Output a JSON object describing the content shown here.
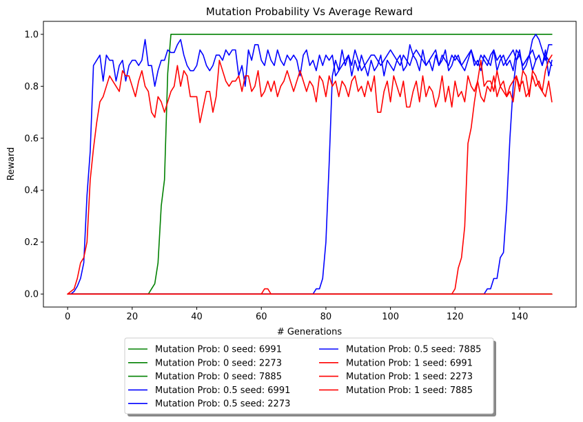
{
  "chart_data": {
    "type": "line",
    "title": "Mutation Probability Vs Average Reward",
    "xlabel": "# Generations",
    "ylabel": "Reward",
    "xlim": [
      -7.5,
      157.5
    ],
    "ylim": [
      -0.05,
      1.05
    ],
    "xticks": [
      0,
      20,
      40,
      60,
      80,
      100,
      120,
      140
    ],
    "yticks": [
      0.0,
      0.2,
      0.4,
      0.6,
      0.8,
      1.0
    ],
    "xtick_labels": [
      "0",
      "20",
      "40",
      "60",
      "80",
      "100",
      "120",
      "140"
    ],
    "ytick_labels": [
      "0.0",
      "0.2",
      "0.4",
      "0.6",
      "0.8",
      "1.0"
    ],
    "grid": false,
    "legend_position": "bottom-center",
    "legend_columns": 2,
    "series": [
      {
        "name": "Mutation Prob: 0 seed: 6991",
        "color": "#008000",
        "x": [
          0,
          25,
          26,
          27,
          28,
          29,
          30,
          31,
          32,
          150
        ],
        "y": [
          0,
          0,
          0.02,
          0.04,
          0.12,
          0.34,
          0.44,
          0.85,
          1.0,
          1.0
        ]
      },
      {
        "name": "Mutation Prob: 0 seed: 2273",
        "color": "#008000",
        "x": [
          0,
          150
        ],
        "y": [
          0,
          0
        ]
      },
      {
        "name": "Mutation Prob: 0 seed: 7885",
        "color": "#008000",
        "x": [
          0,
          150
        ],
        "y": [
          0,
          0
        ]
      },
      {
        "name": "Mutation Prob: 0.5 seed: 6991",
        "color": "#0000ff",
        "x": [
          0,
          1,
          2,
          3,
          4,
          5,
          6,
          7,
          8,
          9,
          10,
          11,
          12,
          13,
          14,
          15,
          16,
          17,
          18,
          19,
          20,
          21,
          22,
          23,
          24,
          25,
          26,
          27,
          28,
          29,
          30,
          31,
          32,
          33,
          34,
          35,
          36,
          37,
          38,
          39,
          40,
          41,
          42,
          43,
          44,
          45,
          46,
          47,
          48,
          49,
          50,
          51,
          52,
          53,
          54,
          55,
          56,
          57,
          58,
          59,
          60,
          61,
          62,
          63,
          64,
          65,
          66,
          67,
          68,
          69,
          70,
          71,
          72,
          73,
          74,
          75,
          76,
          77,
          78,
          79,
          80,
          81,
          82,
          83,
          84,
          85,
          86,
          87,
          88,
          89,
          90,
          91,
          92,
          93,
          94,
          95,
          96,
          97,
          98,
          99,
          100,
          101,
          102,
          103,
          104,
          105,
          106,
          107,
          108,
          109,
          110,
          111,
          112,
          113,
          114,
          115,
          116,
          117,
          118,
          119,
          120,
          121,
          122,
          123,
          124,
          125,
          126,
          127,
          128,
          129,
          130,
          131,
          132,
          133,
          134,
          135,
          136,
          137,
          138,
          139,
          140,
          141,
          142,
          143,
          144,
          145,
          146,
          147,
          148,
          149,
          150
        ],
        "y": [
          0,
          0,
          0.01,
          0.03,
          0.06,
          0.12,
          0.38,
          0.55,
          0.88,
          0.9,
          0.92,
          0.82,
          0.92,
          0.9,
          0.9,
          0.82,
          0.88,
          0.9,
          0.82,
          0.88,
          0.9,
          0.9,
          0.88,
          0.9,
          0.98,
          0.88,
          0.88,
          0.8,
          0.86,
          0.9,
          0.9,
          0.94,
          0.93,
          0.93,
          0.96,
          0.98,
          0.92,
          0.88,
          0.86,
          0.86,
          0.88,
          0.94,
          0.92,
          0.88,
          0.86,
          0.88,
          0.92,
          0.92,
          0.9,
          0.94,
          0.92,
          0.94,
          0.94,
          0.84,
          0.88,
          0.8,
          0.94,
          0.9,
          0.96,
          0.96,
          0.9,
          0.88,
          0.94,
          0.9,
          0.88,
          0.94,
          0.9,
          0.88,
          0.92,
          0.9,
          0.92,
          0.9,
          0.84,
          0.92,
          0.94,
          0.88,
          0.9,
          0.86,
          0.92,
          0.88,
          0.92,
          0.9,
          0.92,
          0.84,
          0.86,
          0.88,
          0.9,
          0.92,
          0.88,
          0.94,
          0.9,
          0.86,
          0.88,
          0.9,
          0.92,
          0.92,
          0.9,
          0.88,
          0.9,
          0.92,
          0.94,
          0.92,
          0.9,
          0.88,
          0.92,
          0.9,
          0.88,
          0.92,
          0.94,
          0.92,
          0.9,
          0.88,
          0.9,
          0.92,
          0.94,
          0.88,
          0.92,
          0.9,
          0.88,
          0.92,
          0.9,
          0.92,
          0.88,
          0.9,
          0.92,
          0.94,
          0.9,
          0.88,
          0.92,
          0.9,
          0.88,
          0.92,
          0.94,
          0.9,
          0.92,
          0.88,
          0.9,
          0.92,
          0.94,
          0.9,
          0.92,
          0.88,
          0.9,
          0.92,
          0.94,
          0.9,
          0.92,
          0.88,
          0.92,
          0.9,
          0.88
        ]
      },
      {
        "name": "Mutation Prob: 0.5 seed: 2273",
        "color": "#0000ff",
        "x": [
          0,
          76,
          77,
          78,
          79,
          80,
          81,
          82,
          83,
          84,
          85,
          86,
          87,
          88,
          89,
          90,
          91,
          92,
          93,
          94,
          95,
          96,
          97,
          98,
          99,
          100,
          101,
          102,
          103,
          104,
          105,
          106,
          107,
          108,
          109,
          110,
          111,
          112,
          113,
          114,
          115,
          116,
          117,
          118,
          119,
          120,
          121,
          122,
          123,
          124,
          125,
          126,
          127,
          128,
          129,
          130,
          131,
          132,
          133,
          134,
          135,
          136,
          137,
          138,
          139,
          140,
          141,
          142,
          143,
          144,
          145,
          146,
          147,
          148,
          149,
          150
        ],
        "y": [
          0,
          0,
          0.02,
          0.02,
          0.06,
          0.2,
          0.5,
          0.84,
          0.9,
          0.86,
          0.94,
          0.88,
          0.92,
          0.84,
          0.9,
          0.86,
          0.92,
          0.88,
          0.84,
          0.9,
          0.86,
          0.88,
          0.92,
          0.84,
          0.9,
          0.88,
          0.86,
          0.9,
          0.92,
          0.86,
          0.88,
          0.96,
          0.92,
          0.9,
          0.86,
          0.94,
          0.88,
          0.9,
          0.86,
          0.92,
          0.88,
          0.9,
          0.94,
          0.86,
          0.88,
          0.92,
          0.9,
          0.88,
          0.86,
          0.9,
          0.94,
          0.88,
          0.9,
          0.86,
          0.92,
          0.9,
          0.88,
          0.94,
          0.86,
          0.9,
          0.92,
          0.88,
          0.9,
          0.86,
          0.94,
          0.92,
          0.88,
          0.9,
          0.92,
          0.86,
          0.9,
          0.92,
          0.88,
          0.94,
          0.84,
          0.9
        ]
      },
      {
        "name": "Mutation Prob: 0.5 seed: 7885",
        "color": "#0000ff",
        "x": [
          0,
          129,
          130,
          131,
          132,
          133,
          134,
          135,
          136,
          137,
          138,
          139,
          140,
          141,
          142,
          143,
          144,
          145,
          146,
          147,
          148,
          149,
          150
        ],
        "y": [
          0,
          0,
          0.02,
          0.02,
          0.06,
          0.06,
          0.14,
          0.16,
          0.34,
          0.6,
          0.8,
          0.9,
          0.94,
          0.86,
          0.88,
          0.92,
          0.98,
          1.0,
          0.98,
          0.94,
          0.9,
          0.96,
          0.96
        ]
      },
      {
        "name": "Mutation Prob: 1 seed: 6991",
        "color": "#ff0000",
        "x": [
          0,
          1,
          2,
          3,
          4,
          5,
          6,
          7,
          8,
          9,
          10,
          11,
          12,
          13,
          14,
          15,
          16,
          17,
          18,
          19,
          20,
          21,
          22,
          23,
          24,
          25,
          26,
          27,
          28,
          29,
          30,
          31,
          32,
          33,
          34,
          35,
          36,
          37,
          38,
          39,
          40,
          41,
          42,
          43,
          44,
          45,
          46,
          47,
          48,
          49,
          50,
          51,
          52,
          53,
          54,
          55,
          56,
          57,
          58,
          59,
          60,
          61,
          62,
          63,
          64,
          65,
          66,
          67,
          68,
          69,
          70,
          71,
          72,
          73,
          74,
          75,
          76,
          77,
          78,
          79,
          80,
          81,
          82,
          83,
          84,
          85,
          86,
          87,
          88,
          89,
          90,
          91,
          92,
          93,
          94,
          95,
          96,
          97,
          98,
          99,
          100,
          101,
          102,
          103,
          104,
          105,
          106,
          107,
          108,
          109,
          110,
          111,
          112,
          113,
          114,
          115,
          116,
          117,
          118,
          119,
          120,
          121,
          122,
          123,
          124,
          125,
          126,
          127,
          128,
          129,
          130,
          131,
          132,
          133,
          134,
          135,
          136,
          137,
          138,
          139,
          140,
          141,
          142,
          143,
          144,
          145,
          146,
          147,
          148,
          149,
          150
        ],
        "y": [
          0,
          0.01,
          0.02,
          0.06,
          0.12,
          0.14,
          0.2,
          0.44,
          0.56,
          0.66,
          0.74,
          0.76,
          0.8,
          0.84,
          0.82,
          0.8,
          0.78,
          0.86,
          0.84,
          0.84,
          0.8,
          0.76,
          0.82,
          0.86,
          0.8,
          0.78,
          0.7,
          0.68,
          0.76,
          0.74,
          0.7,
          0.74,
          0.78,
          0.8,
          0.88,
          0.8,
          0.86,
          0.84,
          0.76,
          0.76,
          0.76,
          0.66,
          0.72,
          0.78,
          0.78,
          0.7,
          0.76,
          0.9,
          0.86,
          0.82,
          0.8,
          0.82,
          0.82,
          0.84,
          0.78,
          0.84,
          0.84,
          0.78,
          0.8,
          0.86,
          0.76,
          0.78,
          0.82,
          0.78,
          0.82,
          0.76,
          0.8,
          0.82,
          0.86,
          0.82,
          0.78,
          0.82,
          0.86,
          0.82,
          0.78,
          0.82,
          0.8,
          0.74,
          0.84,
          0.82,
          0.76,
          0.84,
          0.8,
          0.82,
          0.76,
          0.82,
          0.8,
          0.76,
          0.82,
          0.84,
          0.78,
          0.8,
          0.76,
          0.82,
          0.78,
          0.84,
          0.7,
          0.7,
          0.78,
          0.82,
          0.74,
          0.84,
          0.8,
          0.76,
          0.82,
          0.72,
          0.72,
          0.78,
          0.82,
          0.74,
          0.84,
          0.76,
          0.8,
          0.78,
          0.72,
          0.76,
          0.84,
          0.74,
          0.8,
          0.72,
          0.82,
          0.76,
          0.78,
          0.74,
          0.84,
          0.8,
          0.78,
          0.82,
          0.76,
          0.74,
          0.8,
          0.78,
          0.84,
          0.76,
          0.8,
          0.82,
          0.76,
          0.78,
          0.74,
          0.84,
          0.8,
          0.82,
          0.76,
          0.78,
          0.84,
          0.8,
          0.82,
          0.78,
          0.76,
          0.82,
          0.74
        ]
      },
      {
        "name": "Mutation Prob: 1 seed: 2273",
        "color": "#ff0000",
        "x": [
          0,
          60,
          61,
          62,
          63,
          150
        ],
        "y": [
          0,
          0,
          0.02,
          0.02,
          0,
          0
        ]
      },
      {
        "name": "Mutation Prob: 1 seed: 7885",
        "color": "#ff0000",
        "x": [
          0,
          119,
          120,
          121,
          122,
          123,
          124,
          125,
          126,
          127,
          128,
          129,
          130,
          131,
          132,
          133,
          134,
          135,
          136,
          137,
          138,
          139,
          140,
          141,
          142,
          143,
          144,
          145,
          146,
          147,
          148,
          149,
          150
        ],
        "y": [
          0,
          0,
          0.02,
          0.1,
          0.14,
          0.26,
          0.58,
          0.64,
          0.74,
          0.82,
          0.9,
          0.8,
          0.82,
          0.82,
          0.78,
          0.86,
          0.8,
          0.78,
          0.76,
          0.8,
          0.82,
          0.84,
          0.78,
          0.86,
          0.84,
          0.76,
          0.86,
          0.84,
          0.8,
          0.78,
          0.86,
          0.9,
          0.92
        ]
      }
    ]
  }
}
